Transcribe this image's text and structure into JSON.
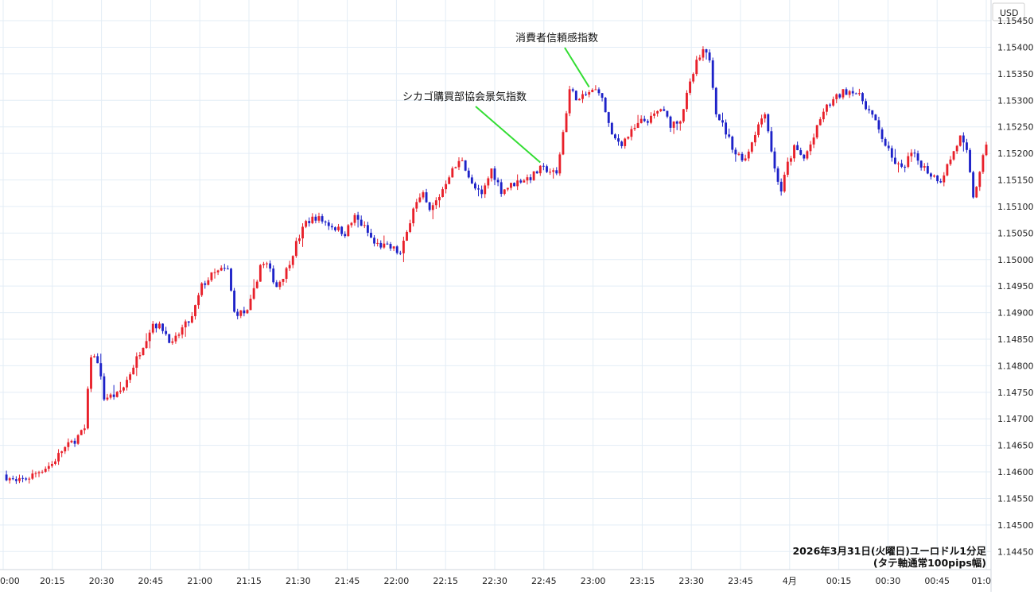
{
  "chart_data": {
    "type": "candlestick",
    "currency_label": "USD",
    "caption_line1": "2026年3月31日(火曜日)ユーロドル1分足",
    "caption_line2": "(タテ軸通常100pips幅)",
    "y_range": [
      1.14425,
      1.1548
    ],
    "y_ticks": [
      "1.14450",
      "1.14500",
      "1.14550",
      "1.14600",
      "1.14650",
      "1.14700",
      "1.14750",
      "1.14800",
      "1.14850",
      "1.14900",
      "1.14950",
      "1.15000",
      "1.15050",
      "1.15100",
      "1.15150",
      "1.15200",
      "1.15250",
      "1.15300",
      "1.15350",
      "1.15400",
      "1.15450"
    ],
    "x_ticks": [
      "0:00",
      "20:15",
      "20:30",
      "20:45",
      "21:00",
      "21:15",
      "21:30",
      "21:45",
      "22:00",
      "22:15",
      "22:30",
      "22:45",
      "23:00",
      "23:15",
      "23:30",
      "23:45",
      "4月",
      "00:15",
      "00:30",
      "00:45",
      "01:0"
    ],
    "x_minute_range": [
      0,
      302
    ],
    "up_color": "#e8202a",
    "down_color": "#1d22c8",
    "annotations": [
      {
        "label": "シカゴ購買部協会景気指数",
        "time": "22:45",
        "minute": 165,
        "price": 1.15183
      },
      {
        "label": "消費者信頼感指数",
        "time": "23:00",
        "minute": 180,
        "price": 1.15325
      }
    ],
    "anchors": [
      [
        0,
        1.14595
      ],
      [
        4,
        1.1458
      ],
      [
        8,
        1.1459
      ],
      [
        12,
        1.14605
      ],
      [
        15,
        1.14615
      ],
      [
        18,
        1.1464
      ],
      [
        22,
        1.1466
      ],
      [
        25,
        1.1468
      ],
      [
        27,
        1.1482
      ],
      [
        29,
        1.1481
      ],
      [
        31,
        1.1474
      ],
      [
        35,
        1.14745
      ],
      [
        37,
        1.1476
      ],
      [
        40,
        1.148
      ],
      [
        43,
        1.1484
      ],
      [
        46,
        1.1488
      ],
      [
        49,
        1.1487
      ],
      [
        52,
        1.1484
      ],
      [
        55,
        1.1487
      ],
      [
        58,
        1.1489
      ],
      [
        61,
        1.1495
      ],
      [
        64,
        1.1497
      ],
      [
        67,
        1.1498
      ],
      [
        69,
        1.1498
      ],
      [
        71,
        1.149
      ],
      [
        75,
        1.149
      ],
      [
        77,
        1.1494
      ],
      [
        79,
        1.1499
      ],
      [
        81,
        1.1499
      ],
      [
        84,
        1.1495
      ],
      [
        87,
        1.1498
      ],
      [
        90,
        1.1503
      ],
      [
        93,
        1.1507
      ],
      [
        96,
        1.1508
      ],
      [
        99,
        1.1507
      ],
      [
        102,
        1.1506
      ],
      [
        105,
        1.1505
      ],
      [
        108,
        1.1508
      ],
      [
        111,
        1.1506
      ],
      [
        114,
        1.1503
      ],
      [
        117,
        1.15025
      ],
      [
        120,
        1.1502
      ],
      [
        122,
        1.1501
      ],
      [
        124,
        1.1505
      ],
      [
        126,
        1.151
      ],
      [
        129,
        1.1512
      ],
      [
        131,
        1.1509
      ],
      [
        134,
        1.1512
      ],
      [
        137,
        1.1516
      ],
      [
        141,
        1.1519
      ],
      [
        144,
        1.1514
      ],
      [
        147,
        1.1512
      ],
      [
        150,
        1.1517
      ],
      [
        153,
        1.1513
      ],
      [
        156,
        1.1514
      ],
      [
        159,
        1.1515
      ],
      [
        162,
        1.15155
      ],
      [
        165,
        1.1517
      ],
      [
        167,
        1.1517
      ],
      [
        170,
        1.1516
      ],
      [
        172,
        1.1524
      ],
      [
        174,
        1.1532
      ],
      [
        177,
        1.153
      ],
      [
        180,
        1.15315
      ],
      [
        183,
        1.1532
      ],
      [
        185,
        1.1528
      ],
      [
        187,
        1.1523
      ],
      [
        190,
        1.1522
      ],
      [
        193,
        1.1524
      ],
      [
        196,
        1.1526
      ],
      [
        199,
        1.15265
      ],
      [
        202,
        1.15285
      ],
      [
        205,
        1.15255
      ],
      [
        208,
        1.15265
      ],
      [
        211,
        1.1533
      ],
      [
        213,
        1.1537
      ],
      [
        215,
        1.1539
      ],
      [
        217,
        1.1538
      ],
      [
        219,
        1.1528
      ],
      [
        222,
        1.1524
      ],
      [
        225,
        1.152
      ],
      [
        228,
        1.1519
      ],
      [
        231,
        1.1524
      ],
      [
        234,
        1.1528
      ],
      [
        237,
        1.1517
      ],
      [
        239,
        1.1513
      ],
      [
        241,
        1.1518
      ],
      [
        243,
        1.1521
      ],
      [
        246,
        1.1519
      ],
      [
        249,
        1.1523
      ],
      [
        252,
        1.1528
      ],
      [
        255,
        1.153
      ],
      [
        258,
        1.15315
      ],
      [
        261,
        1.1532
      ],
      [
        264,
        1.153
      ],
      [
        267,
        1.1527
      ],
      [
        270,
        1.1523
      ],
      [
        273,
        1.1519
      ],
      [
        276,
        1.1517
      ],
      [
        279,
        1.152
      ],
      [
        282,
        1.1518
      ],
      [
        285,
        1.1516
      ],
      [
        288,
        1.1515
      ],
      [
        291,
        1.1519
      ],
      [
        294,
        1.1523
      ],
      [
        296,
        1.152
      ],
      [
        298,
        1.1512
      ],
      [
        300,
        1.1516
      ],
      [
        302,
        1.1522
      ]
    ]
  }
}
